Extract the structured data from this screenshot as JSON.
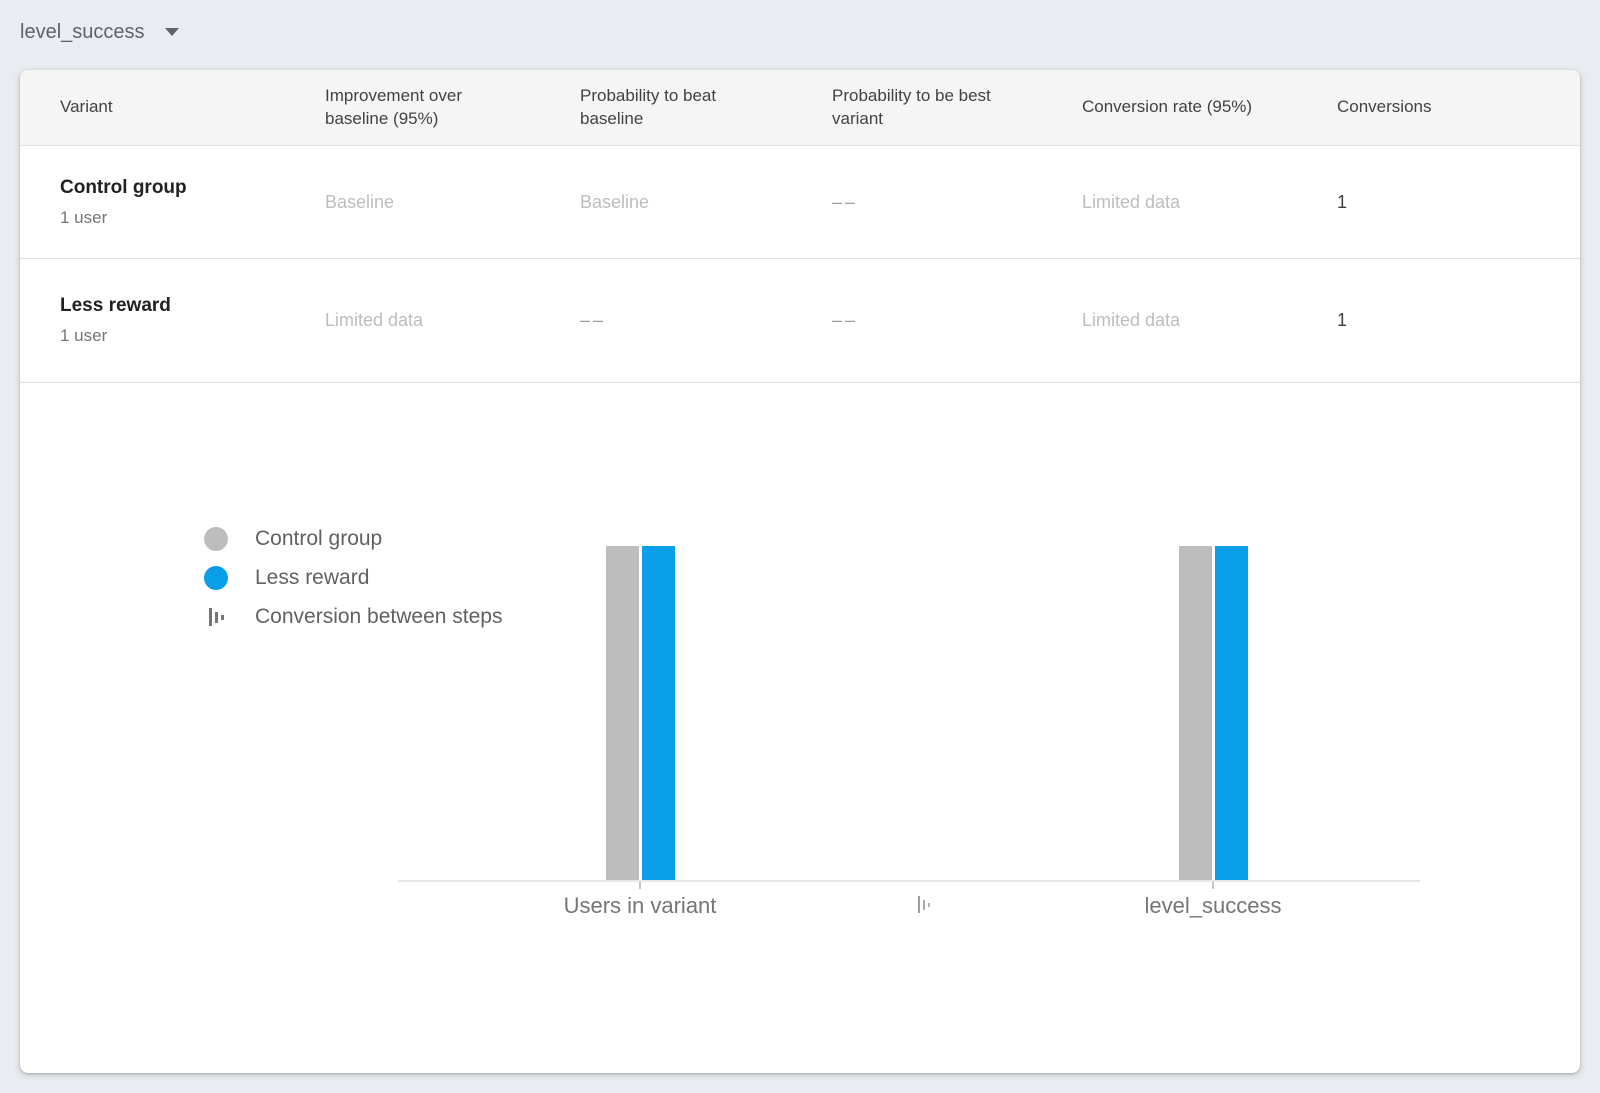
{
  "goal_selector": {
    "label": "level_success"
  },
  "table": {
    "columns": [
      "Variant",
      "Improvement over baseline (95%)",
      "Probability to beat baseline",
      "Probability to be best variant",
      "Conversion rate (95%)",
      "Conversions"
    ],
    "rows": [
      {
        "variant": "Control group",
        "subtitle": "1 user",
        "improvement": "Baseline",
        "prob_beat_baseline": "Baseline",
        "prob_best_variant": "––",
        "conversion_rate": "Limited data",
        "conversions": "1"
      },
      {
        "variant": "Less reward",
        "subtitle": "1 user",
        "improvement": "Limited data",
        "prob_beat_baseline": "––",
        "prob_best_variant": "––",
        "conversion_rate": "Limited data",
        "conversions": "1"
      }
    ]
  },
  "legend": {
    "items": [
      {
        "label": "Control group",
        "color": "#bdbdbd",
        "marker": "circle"
      },
      {
        "label": "Less reward",
        "color": "#0a9de8",
        "marker": "circle"
      },
      {
        "label": "Conversion between steps",
        "marker": "steps-icon"
      }
    ]
  },
  "chart_data": {
    "type": "bar",
    "categories": [
      "Users in variant",
      "level_success"
    ],
    "series": [
      {
        "name": "Control group",
        "color": "#bdbdbd",
        "values": [
          1,
          1
        ]
      },
      {
        "name": "Less reward",
        "color": "#0a9de8",
        "values": [
          1,
          1
        ]
      }
    ],
    "title": "",
    "xlabel": "",
    "ylabel": "",
    "ylim": [
      0,
      1
    ],
    "grid": false,
    "legend_position": "left",
    "annotations": [
      "Conversion between steps"
    ]
  },
  "colors": {
    "page_background": "#e9edf1",
    "card_background": "#ffffff",
    "header_background": "#f5f5f5",
    "accent_blue": "#0a9de8",
    "bar_gray": "#bdbdbd"
  }
}
